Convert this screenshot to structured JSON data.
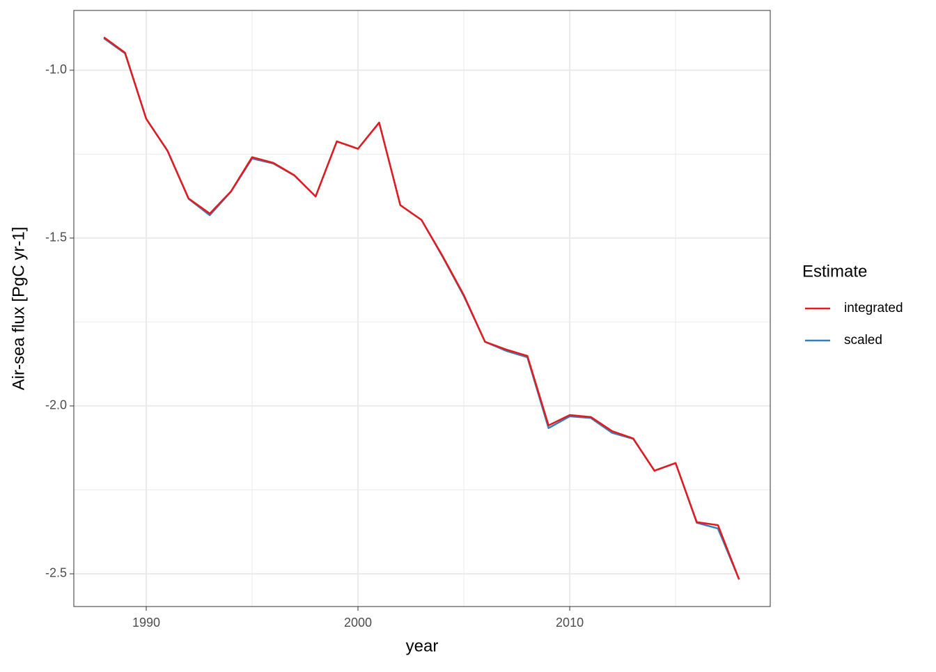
{
  "chart_data": {
    "type": "line",
    "x_label": "year",
    "y_label": "Air-sea flux [PgC yr-1]",
    "legend_title": "Estimate",
    "legend_position": "right",
    "x": [
      1988,
      1989,
      1990,
      1991,
      1992,
      1993,
      1994,
      1995,
      1996,
      1997,
      1998,
      1999,
      2000,
      2001,
      2002,
      2003,
      2004,
      2005,
      2006,
      2007,
      2008,
      2009,
      2010,
      2011,
      2012,
      2013,
      2014,
      2015,
      2016,
      2017,
      2018
    ],
    "series": [
      {
        "name": "integrated",
        "color": "#e41a1c",
        "values": [
          -0.902,
          -0.948,
          -1.145,
          -1.239,
          -1.382,
          -1.427,
          -1.361,
          -1.259,
          -1.276,
          -1.313,
          -1.376,
          -1.212,
          -1.234,
          -1.156,
          -1.402,
          -1.446,
          -1.554,
          -1.67,
          -1.809,
          -1.832,
          -1.851,
          -2.058,
          -2.027,
          -2.033,
          -2.075,
          -2.097,
          -2.193,
          -2.17,
          -2.346,
          -2.355,
          -2.517
        ]
      },
      {
        "name": "scaled",
        "color": "#377eb8",
        "values": [
          -0.905,
          -0.95,
          -1.145,
          -1.24,
          -1.383,
          -1.432,
          -1.362,
          -1.263,
          -1.278,
          -1.314,
          -1.376,
          -1.212,
          -1.234,
          -1.156,
          -1.402,
          -1.446,
          -1.556,
          -1.673,
          -1.809,
          -1.836,
          -1.855,
          -2.066,
          -2.031,
          -2.036,
          -2.08,
          -2.098,
          -2.193,
          -2.17,
          -2.348,
          -2.365,
          -2.517
        ]
      }
    ],
    "xlim": [
      1986.58,
      2019.47
    ],
    "ylim": [
      -2.5975,
      -0.822
    ],
    "xticks": [
      1990,
      2000,
      2010
    ],
    "yticks": [
      {
        "value": -1.0,
        "label": "-1.0"
      },
      {
        "value": -1.5,
        "label": "-1.5"
      },
      {
        "value": -2.0,
        "label": "-2.0"
      },
      {
        "value": -2.5,
        "label": "-2.5"
      }
    ],
    "x_minor_grid": [
      1995,
      2005,
      2015
    ],
    "y_minor_grid": [
      -1.25,
      -1.75,
      -2.25
    ],
    "grid": true
  }
}
